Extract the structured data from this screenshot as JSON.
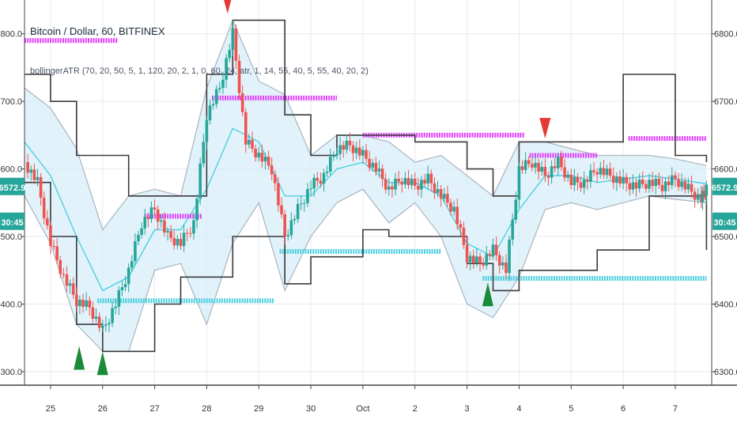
{
  "chart_data": {
    "type": "line",
    "title": "Bitcoin / Dollar, 60, BITFINEX",
    "subtitle": "bollingerATR (70, 20, 50, 5, 1, 120, 20, 2, 1, 0, 60, 24, atr, 1, 14, 55, 40, 5, 55, 40, 20, 2)",
    "y_ticks": [
      {
        "value": 6800,
        "label": "6800.0"
      },
      {
        "value": 6700,
        "label": "6700.0"
      },
      {
        "value": 6600,
        "label": "6600.0"
      },
      {
        "value": 6500,
        "label": "6500.0"
      },
      {
        "value": 6400,
        "label": "6400.0"
      },
      {
        "value": 6300,
        "label": "6300.0"
      }
    ],
    "x_ticks": [
      {
        "value": 0.5,
        "label": "25"
      },
      {
        "value": 1.5,
        "label": "26"
      },
      {
        "value": 2.5,
        "label": "27"
      },
      {
        "value": 3.5,
        "label": "28"
      },
      {
        "value": 4.5,
        "label": "29"
      },
      {
        "value": 5.5,
        "label": "30"
      },
      {
        "value": 6.5,
        "label": "Oct"
      },
      {
        "value": 7.5,
        "label": "2"
      },
      {
        "value": 8.5,
        "label": "3"
      },
      {
        "value": 9.5,
        "label": "4"
      },
      {
        "value": 10.5,
        "label": "5"
      },
      {
        "value": 11.5,
        "label": "6"
      },
      {
        "value": 12.5,
        "label": "7"
      }
    ],
    "xlim": [
      0,
      13.2
    ],
    "ylim": [
      6280,
      6850
    ],
    "grid": true,
    "current_price": {
      "label": "6572.9",
      "countdown": "30:45",
      "value": 6572.9
    },
    "price_series": [
      {
        "x": 0.0,
        "y": 6610
      },
      {
        "x": 0.25,
        "y": 6580
      },
      {
        "x": 0.5,
        "y": 6490
      },
      {
        "x": 0.75,
        "y": 6440
      },
      {
        "x": 1.0,
        "y": 6405
      },
      {
        "x": 1.25,
        "y": 6395
      },
      {
        "x": 1.5,
        "y": 6360
      },
      {
        "x": 1.75,
        "y": 6400
      },
      {
        "x": 2.0,
        "y": 6450
      },
      {
        "x": 2.25,
        "y": 6520
      },
      {
        "x": 2.5,
        "y": 6540
      },
      {
        "x": 2.75,
        "y": 6500
      },
      {
        "x": 3.0,
        "y": 6490
      },
      {
        "x": 3.25,
        "y": 6520
      },
      {
        "x": 3.5,
        "y": 6680
      },
      {
        "x": 3.75,
        "y": 6720
      },
      {
        "x": 4.0,
        "y": 6800
      },
      {
        "x": 4.25,
        "y": 6640
      },
      {
        "x": 4.5,
        "y": 6620
      },
      {
        "x": 4.75,
        "y": 6600
      },
      {
        "x": 5.0,
        "y": 6500
      },
      {
        "x": 5.25,
        "y": 6540
      },
      {
        "x": 5.5,
        "y": 6575
      },
      {
        "x": 5.75,
        "y": 6590
      },
      {
        "x": 6.0,
        "y": 6630
      },
      {
        "x": 6.25,
        "y": 6635
      },
      {
        "x": 6.5,
        "y": 6620
      },
      {
        "x": 6.75,
        "y": 6600
      },
      {
        "x": 7.0,
        "y": 6570
      },
      {
        "x": 7.25,
        "y": 6585
      },
      {
        "x": 7.5,
        "y": 6575
      },
      {
        "x": 7.75,
        "y": 6585
      },
      {
        "x": 8.0,
        "y": 6560
      },
      {
        "x": 8.25,
        "y": 6540
      },
      {
        "x": 8.5,
        "y": 6470
      },
      {
        "x": 8.75,
        "y": 6460
      },
      {
        "x": 9.0,
        "y": 6480
      },
      {
        "x": 9.25,
        "y": 6450
      },
      {
        "x": 9.5,
        "y": 6600
      },
      {
        "x": 9.75,
        "y": 6610
      },
      {
        "x": 10.0,
        "y": 6590
      },
      {
        "x": 10.25,
        "y": 6610
      },
      {
        "x": 10.5,
        "y": 6580
      },
      {
        "x": 10.75,
        "y": 6580
      },
      {
        "x": 11.0,
        "y": 6600
      },
      {
        "x": 11.25,
        "y": 6590
      },
      {
        "x": 11.5,
        "y": 6580
      },
      {
        "x": 11.75,
        "y": 6575
      },
      {
        "x": 12.0,
        "y": 6580
      },
      {
        "x": 12.25,
        "y": 6575
      },
      {
        "x": 12.5,
        "y": 6585
      },
      {
        "x": 12.75,
        "y": 6570
      },
      {
        "x": 13.0,
        "y": 6555
      },
      {
        "x": 13.1,
        "y": 6572.9
      }
    ],
    "center_band": [
      {
        "x": 0.0,
        "y": 6640
      },
      {
        "x": 0.5,
        "y": 6590
      },
      {
        "x": 1.0,
        "y": 6500
      },
      {
        "x": 1.5,
        "y": 6420
      },
      {
        "x": 2.0,
        "y": 6440
      },
      {
        "x": 2.5,
        "y": 6510
      },
      {
        "x": 3.0,
        "y": 6510
      },
      {
        "x": 3.5,
        "y": 6570
      },
      {
        "x": 4.0,
        "y": 6660
      },
      {
        "x": 4.5,
        "y": 6640
      },
      {
        "x": 5.0,
        "y": 6560
      },
      {
        "x": 5.5,
        "y": 6560
      },
      {
        "x": 6.0,
        "y": 6600
      },
      {
        "x": 6.5,
        "y": 6610
      },
      {
        "x": 7.0,
        "y": 6580
      },
      {
        "x": 7.5,
        "y": 6580
      },
      {
        "x": 8.0,
        "y": 6560
      },
      {
        "x": 8.5,
        "y": 6490
      },
      {
        "x": 9.0,
        "y": 6470
      },
      {
        "x": 9.5,
        "y": 6540
      },
      {
        "x": 10.0,
        "y": 6590
      },
      {
        "x": 10.5,
        "y": 6590
      },
      {
        "x": 11.0,
        "y": 6580
      },
      {
        "x": 11.5,
        "y": 6585
      },
      {
        "x": 12.0,
        "y": 6590
      },
      {
        "x": 12.5,
        "y": 6585
      },
      {
        "x": 13.1,
        "y": 6578
      }
    ],
    "upper_band": [
      {
        "x": 0.0,
        "y": 6720
      },
      {
        "x": 0.5,
        "y": 6690
      },
      {
        "x": 1.0,
        "y": 6630
      },
      {
        "x": 1.5,
        "y": 6510
      },
      {
        "x": 2.0,
        "y": 6560
      },
      {
        "x": 2.5,
        "y": 6570
      },
      {
        "x": 3.0,
        "y": 6560
      },
      {
        "x": 3.5,
        "y": 6720
      },
      {
        "x": 4.0,
        "y": 6820
      },
      {
        "x": 4.5,
        "y": 6730
      },
      {
        "x": 5.0,
        "y": 6710
      },
      {
        "x": 5.5,
        "y": 6620
      },
      {
        "x": 6.0,
        "y": 6650
      },
      {
        "x": 6.5,
        "y": 6650
      },
      {
        "x": 7.0,
        "y": 6640
      },
      {
        "x": 7.5,
        "y": 6610
      },
      {
        "x": 8.0,
        "y": 6620
      },
      {
        "x": 8.5,
        "y": 6590
      },
      {
        "x": 9.0,
        "y": 6560
      },
      {
        "x": 9.5,
        "y": 6640
      },
      {
        "x": 10.0,
        "y": 6640
      },
      {
        "x": 10.5,
        "y": 6630
      },
      {
        "x": 11.0,
        "y": 6620
      },
      {
        "x": 11.5,
        "y": 6620
      },
      {
        "x": 12.0,
        "y": 6620
      },
      {
        "x": 12.5,
        "y": 6615
      },
      {
        "x": 13.1,
        "y": 6605
      }
    ],
    "lower_band": [
      {
        "x": 0.0,
        "y": 6560
      },
      {
        "x": 0.5,
        "y": 6490
      },
      {
        "x": 1.0,
        "y": 6370
      },
      {
        "x": 1.5,
        "y": 6330
      },
      {
        "x": 2.0,
        "y": 6330
      },
      {
        "x": 2.5,
        "y": 6450
      },
      {
        "x": 3.0,
        "y": 6460
      },
      {
        "x": 3.5,
        "y": 6370
      },
      {
        "x": 4.0,
        "y": 6490
      },
      {
        "x": 4.5,
        "y": 6550
      },
      {
        "x": 5.0,
        "y": 6420
      },
      {
        "x": 5.5,
        "y": 6500
      },
      {
        "x": 6.0,
        "y": 6550
      },
      {
        "x": 6.5,
        "y": 6570
      },
      {
        "x": 7.0,
        "y": 6520
      },
      {
        "x": 7.5,
        "y": 6550
      },
      {
        "x": 8.0,
        "y": 6500
      },
      {
        "x": 8.5,
        "y": 6400
      },
      {
        "x": 9.0,
        "y": 6380
      },
      {
        "x": 9.5,
        "y": 6440
      },
      {
        "x": 10.0,
        "y": 6540
      },
      {
        "x": 10.5,
        "y": 6550
      },
      {
        "x": 11.0,
        "y": 6540
      },
      {
        "x": 11.5,
        "y": 6550
      },
      {
        "x": 12.0,
        "y": 6560
      },
      {
        "x": 12.5,
        "y": 6555
      },
      {
        "x": 13.1,
        "y": 6550
      }
    ],
    "donchian_upper": [
      {
        "x": 0.0,
        "y": 6740
      },
      {
        "x": 0.5,
        "y": 6700
      },
      {
        "x": 1.0,
        "y": 6620
      },
      {
        "x": 1.5,
        "y": 6620
      },
      {
        "x": 2.0,
        "y": 6560
      },
      {
        "x": 2.5,
        "y": 6560
      },
      {
        "x": 3.0,
        "y": 6560
      },
      {
        "x": 3.5,
        "y": 6740
      },
      {
        "x": 4.0,
        "y": 6820
      },
      {
        "x": 4.5,
        "y": 6820
      },
      {
        "x": 5.0,
        "y": 6680
      },
      {
        "x": 5.5,
        "y": 6620
      },
      {
        "x": 6.0,
        "y": 6650
      },
      {
        "x": 6.5,
        "y": 6650
      },
      {
        "x": 7.0,
        "y": 6650
      },
      {
        "x": 7.5,
        "y": 6640
      },
      {
        "x": 8.0,
        "y": 6640
      },
      {
        "x": 8.5,
        "y": 6600
      },
      {
        "x": 9.0,
        "y": 6560
      },
      {
        "x": 9.5,
        "y": 6640
      },
      {
        "x": 10.0,
        "y": 6640
      },
      {
        "x": 10.5,
        "y": 6640
      },
      {
        "x": 11.0,
        "y": 6640
      },
      {
        "x": 11.5,
        "y": 6740
      },
      {
        "x": 12.0,
        "y": 6740
      },
      {
        "x": 12.5,
        "y": 6620
      },
      {
        "x": 13.1,
        "y": 6610
      }
    ],
    "donchian_lower": [
      {
        "x": 0.0,
        "y": 6580
      },
      {
        "x": 0.5,
        "y": 6500
      },
      {
        "x": 1.0,
        "y": 6370
      },
      {
        "x": 1.5,
        "y": 6330
      },
      {
        "x": 2.0,
        "y": 6330
      },
      {
        "x": 2.5,
        "y": 6400
      },
      {
        "x": 3.0,
        "y": 6440
      },
      {
        "x": 3.5,
        "y": 6440
      },
      {
        "x": 4.0,
        "y": 6500
      },
      {
        "x": 4.5,
        "y": 6500
      },
      {
        "x": 5.0,
        "y": 6430
      },
      {
        "x": 5.5,
        "y": 6470
      },
      {
        "x": 6.0,
        "y": 6470
      },
      {
        "x": 6.5,
        "y": 6510
      },
      {
        "x": 7.0,
        "y": 6500
      },
      {
        "x": 7.5,
        "y": 6500
      },
      {
        "x": 8.0,
        "y": 6500
      },
      {
        "x": 8.5,
        "y": 6460
      },
      {
        "x": 9.0,
        "y": 6420
      },
      {
        "x": 9.5,
        "y": 6450
      },
      {
        "x": 10.0,
        "y": 6450
      },
      {
        "x": 10.5,
        "y": 6450
      },
      {
        "x": 11.0,
        "y": 6480
      },
      {
        "x": 11.5,
        "y": 6480
      },
      {
        "x": 12.0,
        "y": 6560
      },
      {
        "x": 12.5,
        "y": 6560
      },
      {
        "x": 13.1,
        "y": 6480
      }
    ],
    "resistance_levels": [
      {
        "x1": 0.0,
        "x2": 1.8,
        "y": 6790
      },
      {
        "x1": 2.3,
        "x2": 3.4,
        "y": 6530
      },
      {
        "x1": 3.6,
        "x2": 6.0,
        "y": 6705
      },
      {
        "x1": 6.5,
        "x2": 9.6,
        "y": 6650
      },
      {
        "x1": 9.7,
        "x2": 11.0,
        "y": 6620
      },
      {
        "x1": 11.6,
        "x2": 13.1,
        "y": 6645
      }
    ],
    "support_levels": [
      {
        "x1": 1.4,
        "x2": 4.8,
        "y": 6405
      },
      {
        "x1": 4.9,
        "x2": 8.0,
        "y": 6478
      },
      {
        "x1": 8.8,
        "x2": 13.1,
        "y": 6438
      }
    ],
    "sell_signals": [
      {
        "x": 3.9,
        "y": 6830
      },
      {
        "x": 10.0,
        "y": 6645
      }
    ],
    "buy_signals": [
      {
        "x": 1.05,
        "y": 6338
      },
      {
        "x": 1.5,
        "y": 6330
      },
      {
        "x": 8.9,
        "y": 6432
      }
    ],
    "colors": {
      "bull": "#26a69a",
      "bear": "#ef5350",
      "center": "#4dd0e1",
      "band_fill": "#d6ecf8",
      "band_line": "#a8b4c0",
      "donchian": "#3a3a3a",
      "resistance": "#e040fb",
      "support": "#4dd0e1",
      "sell": "#e53935",
      "buy": "#1b8a3a",
      "price_tag": "#26a69a",
      "grid": "#e6eaf0"
    }
  }
}
